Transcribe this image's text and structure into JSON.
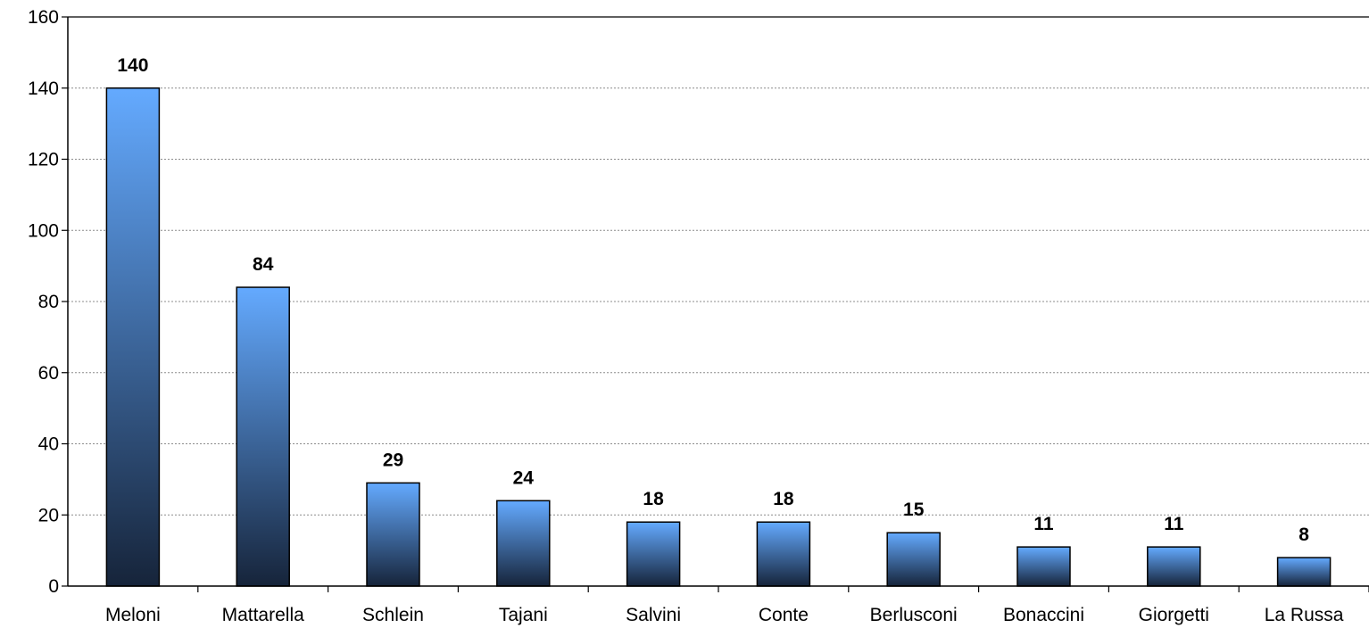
{
  "chart_data": {
    "type": "bar",
    "categories": [
      "Meloni",
      "Mattarella",
      "Schlein",
      "Tajani",
      "Salvini",
      "Conte",
      "Berlusconi",
      "Bonaccini",
      "Giorgetti",
      "La Russa"
    ],
    "values": [
      140,
      84,
      29,
      24,
      18,
      18,
      15,
      11,
      11,
      8
    ],
    "data_labels": [
      "140",
      "84",
      "29",
      "24",
      "18",
      "18",
      "15",
      "11",
      "11",
      "8"
    ],
    "title": "",
    "xlabel": "",
    "ylabel": "",
    "ylim": [
      0,
      160
    ],
    "yticks": [
      0,
      20,
      40,
      60,
      80,
      100,
      120,
      140,
      160
    ],
    "grid": true,
    "legend": "none",
    "colors": {
      "bar_top": "#64aaff",
      "bar_bottom": "#16243a",
      "bar_outline": "#000000",
      "grid": "#8c8c8c",
      "axis": "#000000"
    }
  }
}
